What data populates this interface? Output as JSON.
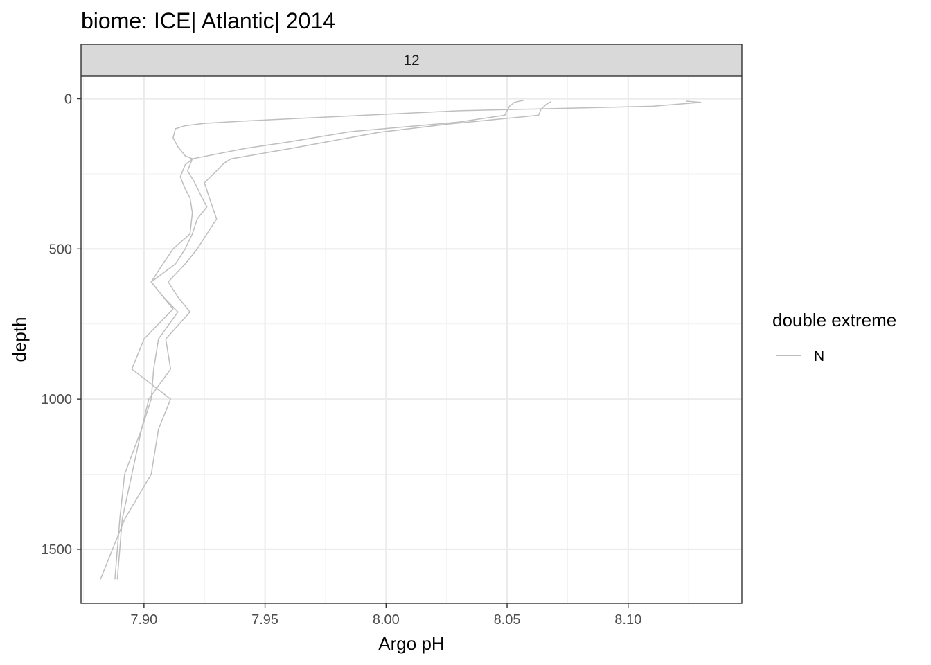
{
  "chart_data": {
    "type": "line",
    "title": "biome: ICE| Atlantic| 2014",
    "facet_label": "12",
    "xlabel": "Argo pH",
    "ylabel": "depth",
    "xlim": [
      7.874,
      8.147
    ],
    "ylim": [
      1680,
      -75
    ],
    "y_reversed": true,
    "x_ticks": [
      7.9,
      7.95,
      8.0,
      8.05,
      8.1
    ],
    "x_tick_labels": [
      "7.90",
      "7.95",
      "8.00",
      "8.05",
      "8.10"
    ],
    "y_ticks": [
      0,
      500,
      1000,
      1500
    ],
    "y_tick_labels": [
      "0",
      "500",
      "1000",
      "1500"
    ],
    "grid": true,
    "legend": {
      "title": "double extreme",
      "position": "right",
      "entries": [
        {
          "label": "N",
          "color": "#bebebe"
        }
      ]
    },
    "series": [
      {
        "group": 1,
        "color": "#bebebe",
        "points": [
          [
            8.057,
            5
          ],
          [
            8.053,
            12
          ],
          [
            8.051,
            25
          ],
          [
            8.049,
            55
          ],
          [
            8.03,
            78
          ],
          [
            7.985,
            110
          ],
          [
            7.959,
            145
          ],
          [
            7.942,
            165
          ],
          [
            7.92,
            200
          ],
          [
            7.918,
            240
          ],
          [
            7.921,
            280
          ],
          [
            7.924,
            330
          ],
          [
            7.926,
            360
          ],
          [
            7.922,
            400
          ],
          [
            7.92,
            450
          ],
          [
            7.917,
            500
          ],
          [
            7.913,
            550
          ],
          [
            7.903,
            610
          ],
          [
            7.908,
            660
          ],
          [
            7.914,
            710
          ],
          [
            7.906,
            800
          ],
          [
            7.904,
            900
          ],
          [
            7.903,
            1000
          ],
          [
            7.899,
            1100
          ],
          [
            7.895,
            1250
          ],
          [
            7.891,
            1400
          ],
          [
            7.889,
            1600
          ]
        ]
      },
      {
        "group": 2,
        "color": "#bebebe",
        "points": [
          [
            8.068,
            10
          ],
          [
            8.066,
            20
          ],
          [
            8.064,
            35
          ],
          [
            8.063,
            55
          ],
          [
            8.025,
            85
          ],
          [
            7.997,
            112
          ],
          [
            7.961,
            165
          ],
          [
            7.936,
            200
          ],
          [
            7.933,
            215
          ],
          [
            7.93,
            240
          ],
          [
            7.925,
            280
          ],
          [
            7.927,
            330
          ],
          [
            7.93,
            400
          ],
          [
            7.926,
            450
          ],
          [
            7.922,
            500
          ],
          [
            7.917,
            550
          ],
          [
            7.91,
            610
          ],
          [
            7.914,
            660
          ],
          [
            7.919,
            710
          ],
          [
            7.909,
            800
          ],
          [
            7.911,
            900
          ],
          [
            7.902,
            1000
          ],
          [
            7.899,
            1100
          ],
          [
            7.892,
            1250
          ],
          [
            7.89,
            1400
          ],
          [
            7.888,
            1600
          ]
        ]
      },
      {
        "group": 3,
        "color": "#bebebe",
        "points": [
          [
            8.124,
            8
          ],
          [
            8.13,
            12
          ],
          [
            8.11,
            25
          ],
          [
            8.03,
            40
          ],
          [
            7.94,
            75
          ],
          [
            7.925,
            82
          ],
          [
            7.917,
            90
          ],
          [
            7.913,
            100
          ],
          [
            7.912,
            130
          ],
          [
            7.914,
            160
          ],
          [
            7.917,
            190
          ],
          [
            7.92,
            200
          ],
          [
            7.917,
            220
          ],
          [
            7.915,
            260
          ],
          [
            7.917,
            300
          ],
          [
            7.919,
            330
          ],
          [
            7.92,
            380
          ],
          [
            7.919,
            450
          ],
          [
            7.912,
            500
          ],
          [
            7.907,
            560
          ],
          [
            7.903,
            610
          ],
          [
            7.912,
            700
          ],
          [
            7.9,
            800
          ],
          [
            7.895,
            900
          ],
          [
            7.911,
            1000
          ],
          [
            7.906,
            1100
          ],
          [
            7.903,
            1250
          ],
          [
            7.892,
            1400
          ],
          [
            7.882,
            1600
          ]
        ]
      }
    ]
  }
}
